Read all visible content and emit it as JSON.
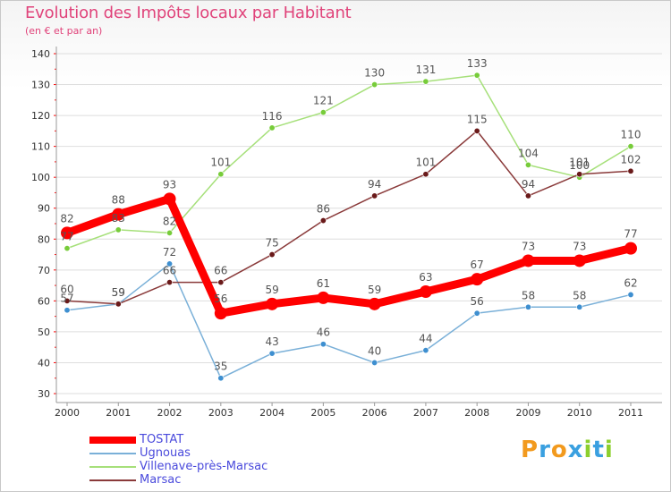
{
  "header": {
    "title": "Evolution des Impôts locaux par Habitant",
    "subtitle": "(en € et par an)"
  },
  "logo": {
    "text": "Proxiti",
    "letters": [
      "P",
      "r",
      "o",
      "x",
      "i",
      "t",
      "i"
    ]
  },
  "chart_data": {
    "type": "line",
    "title": "Evolution des Impôts locaux par Habitant",
    "subtitle": "(en € et par an)",
    "xlabel": "",
    "ylabel": "",
    "ylim": [
      30,
      140
    ],
    "yticks": [
      30,
      40,
      50,
      60,
      70,
      80,
      90,
      100,
      110,
      120,
      130,
      140
    ],
    "grid": true,
    "legend_position": "bottom-left",
    "categories": [
      "2000",
      "2001",
      "2002",
      "2003",
      "2004",
      "2005",
      "2006",
      "2007",
      "2008",
      "2009",
      "2010",
      "2011"
    ],
    "series": [
      {
        "name": "TOSTAT",
        "values": [
          82,
          88,
          93,
          56,
          59,
          61,
          59,
          63,
          67,
          73,
          73,
          77
        ],
        "color": "#ff0000",
        "marker_color": "#ff0000",
        "emphasis": true,
        "labels": [
          "82",
          "88",
          "93",
          "56",
          "59",
          "61",
          "59",
          "63",
          "67",
          "73",
          "73",
          "77"
        ]
      },
      {
        "name": "Ugnouas",
        "values": [
          57,
          59,
          72,
          35,
          43,
          46,
          40,
          44,
          56,
          58,
          58,
          62
        ],
        "color": "#7ab0d8",
        "marker_color": "#3e8fd0",
        "emphasis": false,
        "labels": [
          "57",
          "59",
          "72",
          "35",
          "43",
          "46",
          "40",
          "44",
          "56",
          "58",
          "58",
          "62"
        ]
      },
      {
        "name": "Villenave-près-Marsac",
        "values": [
          77,
          83,
          82,
          101,
          116,
          121,
          130,
          131,
          133,
          104,
          100,
          110
        ],
        "color": "#a6e07a",
        "marker_color": "#77cc3a",
        "emphasis": false,
        "labels": [
          "77",
          "83",
          "82",
          "101",
          "116",
          "121",
          "130",
          "131",
          "133",
          "104",
          "100",
          "110"
        ]
      },
      {
        "name": "Marsac",
        "values": [
          60,
          59,
          66,
          66,
          75,
          86,
          94,
          101,
          115,
          94,
          101,
          102
        ],
        "color": "#8a3a3a",
        "marker_color": "#6a1a1a",
        "emphasis": false,
        "labels": [
          "60",
          "59",
          "66",
          "66",
          "75",
          "86",
          "94",
          "101",
          "115",
          "94",
          "101",
          "102"
        ]
      }
    ]
  }
}
